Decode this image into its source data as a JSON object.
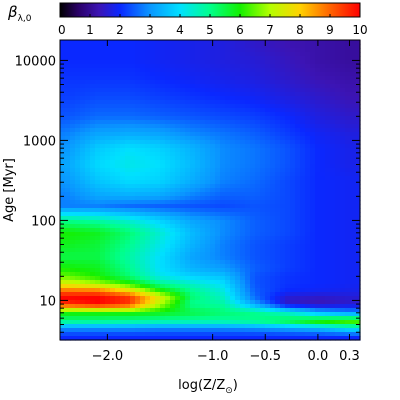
{
  "chart_data": {
    "type": "heatmap",
    "title": "",
    "colorbar": {
      "label_symbol": "β",
      "label_subscript": "λ,0",
      "range": [
        0,
        10
      ],
      "ticks": [
        "0",
        "1",
        "2",
        "3",
        "4",
        "5",
        "6",
        "7",
        "8",
        "9",
        "10"
      ],
      "colormap": "rainbow",
      "stops": [
        {
          "v": 0.0,
          "color": "#000000"
        },
        {
          "v": 0.6,
          "color": "#2a0066"
        },
        {
          "v": 1.3,
          "color": "#3c14b4"
        },
        {
          "v": 2.0,
          "color": "#0a28ff"
        },
        {
          "v": 3.0,
          "color": "#0a96ff"
        },
        {
          "v": 4.0,
          "color": "#00e0ff"
        },
        {
          "v": 5.0,
          "color": "#00ff8c"
        },
        {
          "v": 6.0,
          "color": "#14f000"
        },
        {
          "v": 7.0,
          "color": "#b4ff00"
        },
        {
          "v": 8.0,
          "color": "#ffd200"
        },
        {
          "v": 9.0,
          "color": "#ff6400"
        },
        {
          "v": 10.0,
          "color": "#ff0000"
        }
      ]
    },
    "xlabel_main": "log(Z/Z",
    "xlabel_sub": "⊙",
    "xlabel_close": ")",
    "ylabel": "Age [Myr]",
    "xlim": [
      -2.45,
      0.4
    ],
    "ylim": [
      3.2,
      18000
    ],
    "yscale": "log",
    "x_ticks": [
      {
        "value": -2.0,
        "label": "−2.0"
      },
      {
        "value": -1.0,
        "label": "−1.0"
      },
      {
        "value": -0.5,
        "label": "−0.5"
      },
      {
        "value": 0.0,
        "label": "0.0"
      },
      {
        "value": 0.3,
        "label": "0.3"
      }
    ],
    "y_ticks": [
      {
        "value": 10,
        "label": "10"
      },
      {
        "value": 100,
        "label": "100"
      },
      {
        "value": 1000,
        "label": "1000"
      },
      {
        "value": 10000,
        "label": "10000"
      }
    ],
    "x": [
      -2.4,
      -2.1,
      -1.8,
      -1.5,
      -1.2,
      -0.9,
      -0.6,
      -0.3,
      0.0,
      0.3
    ],
    "y": [
      3.5,
      4.5,
      5.5,
      7,
      9,
      11,
      13,
      16,
      20,
      25,
      35,
      50,
      70,
      100,
      150,
      200,
      300,
      500,
      800,
      1200,
      2000,
      3500,
      6000,
      10000,
      15000
    ],
    "z": [
      [
        2.0,
        2.0,
        2.0,
        2.0,
        2.0,
        2.0,
        2.0,
        2.0,
        2.0,
        2.0
      ],
      [
        3.0,
        3.0,
        3.0,
        2.9,
        2.9,
        2.9,
        3.0,
        3.2,
        3.5,
        4.2
      ],
      [
        5.0,
        5.0,
        4.9,
        4.8,
        4.8,
        4.8,
        5.0,
        5.5,
        6.2,
        6.5
      ],
      [
        6.0,
        6.0,
        6.0,
        5.8,
        5.5,
        5.2,
        5.0,
        4.5,
        3.5,
        3.0
      ],
      [
        9.5,
        10.0,
        9.5,
        7.0,
        5.0,
        4.8,
        3.2,
        1.5,
        1.3,
        1.5
      ],
      [
        10.0,
        10.0,
        9.5,
        7.5,
        5.2,
        4.5,
        2.6,
        1.6,
        1.5,
        1.6
      ],
      [
        9.0,
        9.0,
        8.0,
        6.2,
        5.0,
        4.3,
        2.5,
        2.0,
        1.9,
        1.8
      ],
      [
        7.5,
        7.0,
        6.2,
        5.0,
        4.5,
        4.0,
        2.4,
        2.1,
        2.0,
        1.9
      ],
      [
        6.5,
        6.0,
        5.2,
        4.2,
        3.8,
        3.6,
        2.4,
        2.1,
        2.0,
        1.9
      ],
      [
        6.0,
        5.8,
        5.0,
        4.0,
        3.4,
        3.1,
        2.5,
        2.2,
        2.0,
        1.9
      ],
      [
        5.5,
        5.5,
        4.8,
        4.0,
        3.2,
        2.8,
        2.4,
        2.2,
        2.0,
        1.9
      ],
      [
        5.8,
        5.6,
        5.0,
        4.2,
        3.4,
        2.8,
        2.4,
        2.2,
        2.0,
        1.9
      ],
      [
        6.0,
        5.8,
        5.2,
        4.4,
        3.5,
        2.9,
        2.5,
        2.3,
        2.0,
        1.9
      ],
      [
        5.0,
        4.8,
        4.4,
        3.8,
        3.2,
        2.9,
        2.5,
        2.3,
        2.0,
        1.9
      ],
      [
        2.8,
        2.8,
        2.6,
        2.5,
        2.4,
        2.3,
        2.4,
        2.3,
        2.0,
        1.9
      ],
      [
        2.8,
        3.2,
        3.3,
        3.2,
        2.8,
        2.5,
        2.5,
        2.3,
        2.0,
        1.9
      ],
      [
        3.0,
        3.6,
        3.9,
        3.8,
        3.3,
        2.8,
        2.6,
        2.3,
        2.0,
        1.9
      ],
      [
        3.2,
        3.9,
        4.2,
        4.0,
        3.5,
        2.9,
        2.7,
        2.4,
        2.0,
        1.8
      ],
      [
        3.0,
        3.7,
        4.0,
        3.8,
        3.4,
        2.9,
        2.7,
        2.4,
        2.0,
        1.8
      ],
      [
        2.8,
        3.2,
        3.3,
        3.2,
        2.9,
        2.7,
        2.5,
        2.2,
        1.9,
        1.7
      ],
      [
        2.4,
        2.6,
        2.6,
        2.5,
        2.4,
        2.3,
        2.2,
        2.0,
        1.7,
        1.5
      ],
      [
        2.2,
        2.3,
        2.3,
        2.2,
        2.1,
        2.0,
        1.9,
        1.7,
        1.5,
        1.3
      ],
      [
        2.1,
        2.1,
        2.1,
        2.0,
        1.9,
        1.8,
        1.7,
        1.5,
        1.3,
        1.2
      ],
      [
        2.0,
        2.0,
        2.0,
        1.9,
        1.8,
        1.7,
        1.6,
        1.4,
        1.2,
        1.1
      ],
      [
        2.0,
        2.0,
        2.0,
        1.9,
        1.8,
        1.7,
        1.5,
        1.3,
        1.2,
        1.1
      ]
    ]
  }
}
